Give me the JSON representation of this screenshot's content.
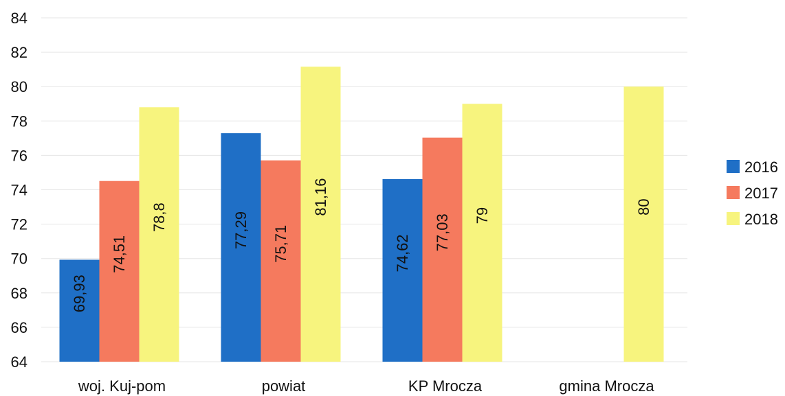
{
  "chart_data": {
    "type": "bar",
    "categories": [
      "woj. Kuj-pom",
      "powiat",
      "KP Mrocza",
      "gmina Mrocza"
    ],
    "series": [
      {
        "name": "2016",
        "color": "#1f6fc6",
        "values": [
          69.93,
          77.29,
          74.62,
          null
        ],
        "labels": [
          "69,93",
          "77,29",
          "74,62",
          ""
        ]
      },
      {
        "name": "2017",
        "color": "#f57a5e",
        "values": [
          74.51,
          75.71,
          77.03,
          null
        ],
        "labels": [
          "74,51",
          "75,71",
          "77,03",
          ""
        ]
      },
      {
        "name": "2018",
        "color": "#f7f47e",
        "values": [
          78.8,
          81.16,
          79,
          80
        ],
        "labels": [
          "78,8",
          "81,16",
          "79",
          "80"
        ]
      }
    ],
    "yticks": [
      "64",
      "66",
      "68",
      "70",
      "72",
      "74",
      "76",
      "78",
      "80",
      "82",
      "84"
    ],
    "ylim": [
      64,
      84
    ],
    "grid": true,
    "legend": "right",
    "title": "",
    "xlabel": "",
    "ylabel": ""
  }
}
